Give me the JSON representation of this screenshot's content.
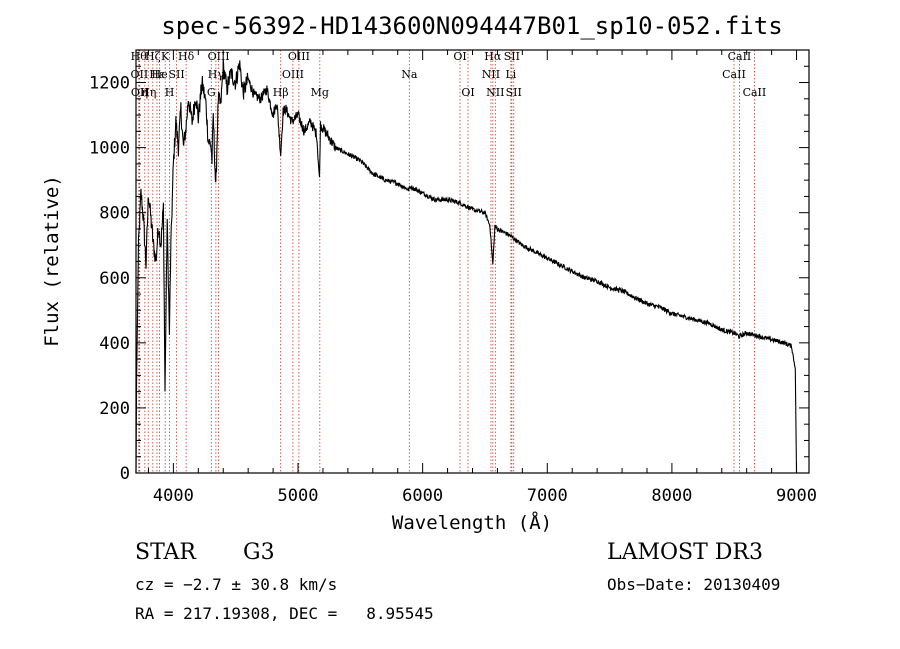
{
  "chart_data": {
    "type": "line",
    "title": "spec-56392-HD143600N094447B01_sp10-052.fits",
    "xlabel": "Wavelength (Å)",
    "ylabel": "Flux (relative)",
    "xlim": [
      3700,
      9100
    ],
    "ylim": [
      0,
      1300
    ],
    "xticks": [
      4000,
      5000,
      6000,
      7000,
      8000,
      9000
    ],
    "yticks": [
      0,
      200,
      400,
      600,
      800,
      1000,
      1200
    ],
    "series": [
      {
        "name": "flux",
        "x": [
          3700,
          3705,
          3720,
          3740,
          3760,
          3780,
          3800,
          3820,
          3840,
          3860,
          3880,
          3900,
          3920,
          3933,
          3950,
          3968,
          3980,
          4000,
          4020,
          4040,
          4060,
          4080,
          4101,
          4120,
          4150,
          4180,
          4200,
          4230,
          4260,
          4280,
          4300,
          4310,
          4320,
          4340,
          4360,
          4380,
          4400,
          4430,
          4460,
          4500,
          4530,
          4560,
          4600,
          4650,
          4700,
          4750,
          4800,
          4830,
          4861,
          4880,
          4900,
          4950,
          5000,
          5050,
          5100,
          5150,
          5172,
          5180,
          5200,
          5250,
          5300,
          5400,
          5500,
          5600,
          5700,
          5800,
          5890,
          5900,
          6000,
          6100,
          6200,
          6300,
          6400,
          6500,
          6540,
          6563,
          6580,
          6600,
          6650,
          6700,
          6800,
          6900,
          7000,
          7100,
          7200,
          7300,
          7400,
          7500,
          7600,
          7700,
          7800,
          7900,
          8000,
          8100,
          8200,
          8300,
          8400,
          8500,
          8540,
          8600,
          8700,
          8800,
          8900,
          8960,
          8990,
          9000
        ],
        "values": [
          0,
          290,
          700,
          860,
          780,
          640,
          860,
          780,
          700,
          650,
          760,
          700,
          820,
          250,
          780,
          430,
          700,
          950,
          1080,
          1000,
          1120,
          1000,
          1060,
          1150,
          1080,
          1160,
          1090,
          1200,
          1140,
          1020,
          1010,
          960,
          1100,
          870,
          1150,
          1130,
          1250,
          1180,
          1230,
          1200,
          1260,
          1170,
          1210,
          1160,
          1150,
          1180,
          1100,
          1140,
          980,
          1110,
          1120,
          1080,
          1100,
          1050,
          1080,
          1040,
          900,
          1070,
          1060,
          1030,
          1000,
          980,
          960,
          920,
          900,
          890,
          870,
          880,
          860,
          840,
          840,
          830,
          810,
          800,
          760,
          640,
          760,
          750,
          740,
          730,
          700,
          680,
          660,
          640,
          620,
          600,
          590,
          570,
          560,
          540,
          520,
          510,
          490,
          480,
          470,
          460,
          440,
          430,
          420,
          430,
          420,
          410,
          400,
          390,
          320,
          0
        ]
      }
    ],
    "lines": [
      {
        "wl": 3722,
        "label": "Hθ",
        "row": 0
      },
      {
        "wl": 3727,
        "label": "OII",
        "row": 1
      },
      {
        "wl": 3730,
        "label": "OII",
        "row": 2
      },
      {
        "wl": 3771,
        "label": "η",
        "row": 2
      },
      {
        "wl": 3798,
        "label": "Hη",
        "row": 2
      },
      {
        "wl": 3835,
        "label": "Hζ",
        "row": 0
      },
      {
        "wl": 3868,
        "label": "Hε",
        "row": 1
      },
      {
        "wl": 3889,
        "label": "He",
        "row": 1
      },
      {
        "wl": 3934,
        "label": "K",
        "row": 0
      },
      {
        "wl": 3969,
        "label": "H",
        "row": 2
      },
      {
        "wl": 4026,
        "label": "SII",
        "row": 1
      },
      {
        "wl": 4102,
        "label": "Hδ",
        "row": 0
      },
      {
        "wl": 4304,
        "label": "G",
        "row": 2
      },
      {
        "wl": 4341,
        "label": "Hγ",
        "row": 1
      },
      {
        "wl": 4363,
        "label": "OIII",
        "row": 0
      },
      {
        "wl": 4861,
        "label": "Hβ",
        "row": 2
      },
      {
        "wl": 4959,
        "label": "OIII",
        "row": 1
      },
      {
        "wl": 5007,
        "label": "OIII",
        "row": 0
      },
      {
        "wl": 5175,
        "label": "Mg",
        "row": 2
      },
      {
        "wl": 5893,
        "label": "Na",
        "row": 1
      },
      {
        "wl": 6300,
        "label": "OI",
        "row": 0
      },
      {
        "wl": 6364,
        "label": "OI",
        "row": 2
      },
      {
        "wl": 6548,
        "label": "NII",
        "row": 1
      },
      {
        "wl": 6563,
        "label": "Hα",
        "row": 0
      },
      {
        "wl": 6583,
        "label": "NII",
        "row": 2
      },
      {
        "wl": 6708,
        "label": "Li",
        "row": 1
      },
      {
        "wl": 6716,
        "label": "SII",
        "row": 0
      },
      {
        "wl": 6731,
        "label": "SII",
        "row": 2
      },
      {
        "wl": 8498,
        "label": "CaII",
        "row": 1
      },
      {
        "wl": 8542,
        "label": "CaII",
        "row": 0
      },
      {
        "wl": 8662,
        "label": "CaII",
        "row": 2
      }
    ]
  },
  "info": {
    "class_label": "STAR",
    "subclass": "G3",
    "survey": "LAMOST DR3",
    "cz": "cz = −2.7 ± 30.8 km/s",
    "obs_date": "Obs−Date: 20130409",
    "coords": "RA = 217.19308, DEC =   8.95545"
  },
  "colors": {
    "axis": "#000000",
    "spectrum": "#000000",
    "line_marker": "#c0392b"
  }
}
